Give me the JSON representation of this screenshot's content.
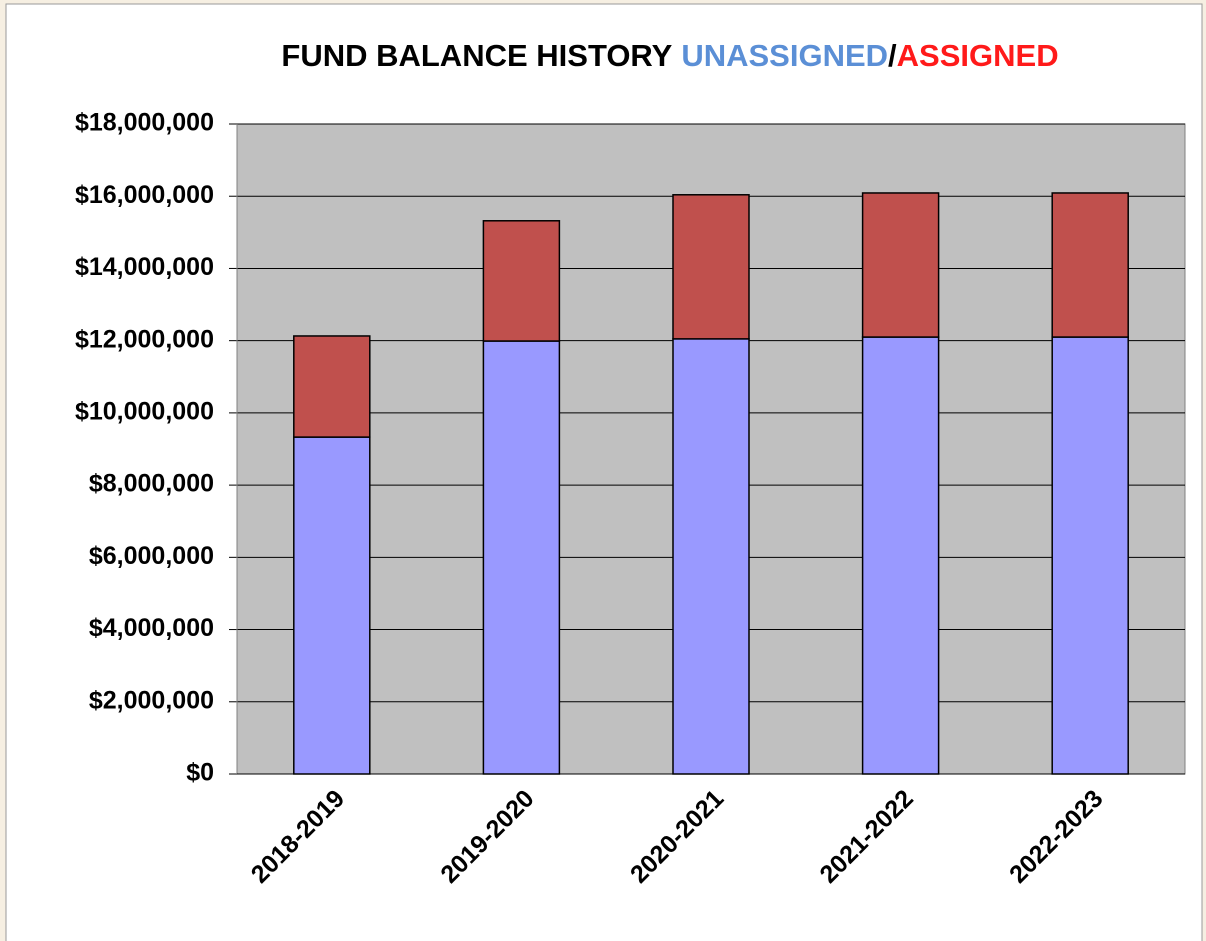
{
  "chart_data": {
    "type": "stacked_bar",
    "title": "FUND BALANCE HISTORY",
    "title_separator": "/",
    "categories": [
      "2018-2019",
      "2019-2020",
      "2020-2021",
      "2021-2022",
      "2022-2023"
    ],
    "series": [
      {
        "name": "UNASSIGNED",
        "color": "#9999ff",
        "title_color": "#5b8fd6",
        "values": [
          9330000,
          11990000,
          12050000,
          12100000,
          12100000
        ]
      },
      {
        "name": "ASSIGNED",
        "color": "#c0504d",
        "title_color": "#ff1a1a",
        "values": [
          2800000,
          3330000,
          3990000,
          3990000,
          3990000
        ]
      }
    ],
    "ylim": [
      0,
      18000000
    ],
    "yticks": [
      {
        "value": 0,
        "label": "$0"
      },
      {
        "value": 2000000,
        "label": "$2,000,000"
      },
      {
        "value": 4000000,
        "label": "$4,000,000"
      },
      {
        "value": 6000000,
        "label": "$6,000,000"
      },
      {
        "value": 8000000,
        "label": "$8,000,000"
      },
      {
        "value": 10000000,
        "label": "$10,000,000"
      },
      {
        "value": 12000000,
        "label": "$12,000,000"
      },
      {
        "value": 14000000,
        "label": "$14,000,000"
      },
      {
        "value": 16000000,
        "label": "$16,000,000"
      },
      {
        "value": 18000000,
        "label": "$18,000,000"
      }
    ],
    "grid": true
  }
}
